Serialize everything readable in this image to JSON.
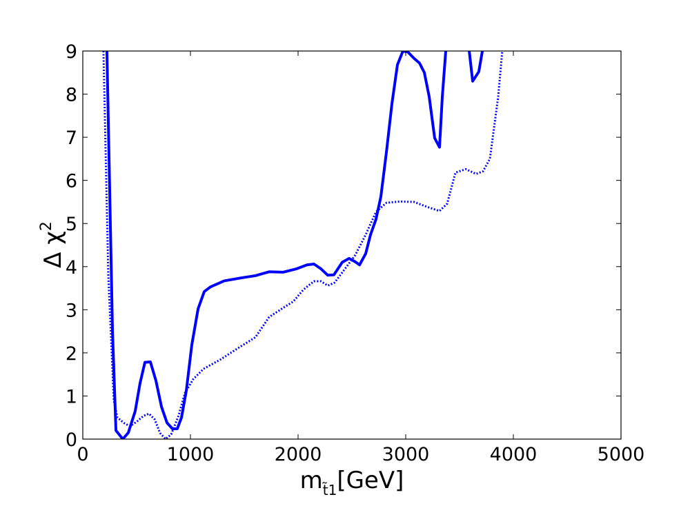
{
  "chart_data": {
    "type": "line",
    "xlabel": {
      "text": "m",
      "subscript": "t̃1",
      "suffix": "[GeV]"
    },
    "ylabel": {
      "text": "Δ χ",
      "superscript": "2"
    },
    "xlim": [
      0,
      5000
    ],
    "xticks": [
      0,
      1000,
      2000,
      3000,
      4000,
      5000
    ],
    "ylim": [
      0,
      9
    ],
    "yticks": [
      0,
      1,
      2,
      3,
      4,
      5,
      6,
      7,
      8,
      9
    ],
    "series": [
      {
        "style": "solid",
        "color": "#0000ff",
        "x": [
          224,
          276,
          308,
          372,
          423,
          487,
          532,
          577,
          628,
          679,
          731,
          782,
          833,
          878,
          917,
          962,
          1013,
          1071,
          1128,
          1186,
          1314,
          1474,
          1603,
          1731,
          1859,
          1987,
          2083,
          2147,
          2212,
          2276,
          2333,
          2410,
          2474,
          2532,
          2571,
          2628,
          2673,
          2724,
          2769,
          2821,
          2872,
          2923,
          2974,
          3019,
          3077,
          3128,
          3173,
          3218,
          3269,
          3314,
          3340,
          3372,
          3480,
          3590,
          3622,
          3679,
          3712
        ],
        "values": [
          9,
          2.5,
          0.2,
          0,
          0.15,
          0.65,
          1.3,
          1.78,
          1.79,
          1.36,
          0.75,
          0.38,
          0.24,
          0.24,
          0.5,
          1.13,
          2.19,
          3.02,
          3.42,
          3.53,
          3.67,
          3.74,
          3.79,
          3.88,
          3.87,
          3.95,
          4.04,
          4.06,
          3.95,
          3.8,
          3.81,
          4.1,
          4.19,
          4.11,
          4.04,
          4.3,
          4.74,
          5.1,
          5.62,
          6.66,
          7.78,
          8.68,
          9,
          8.98,
          8.83,
          8.72,
          8.5,
          7.94,
          6.98,
          6.77,
          7.94,
          9,
          null,
          9,
          8.3,
          8.52,
          9
        ]
      },
      {
        "style": "dotted",
        "color": "#0000ff",
        "x": [
          192,
          237,
          288,
          321,
          385,
          436,
          500,
          564,
          615,
          667,
          718,
          769,
          821,
          885,
          949,
          1026,
          1122,
          1282,
          1442,
          1603,
          1731,
          1859,
          1955,
          2051,
          2147,
          2212,
          2276,
          2340,
          2436,
          2532,
          2628,
          2724,
          2821,
          2949,
          3077,
          3205,
          3314,
          3385,
          3462,
          3558,
          3654,
          3718,
          3782,
          3859,
          3897
        ],
        "values": [
          9,
          3.8,
          0.9,
          0.5,
          0.37,
          0.3,
          0.4,
          0.54,
          0.59,
          0.46,
          0.14,
          0,
          0.11,
          0.51,
          1.07,
          1.39,
          1.63,
          1.85,
          2.11,
          2.36,
          2.83,
          3.04,
          3.19,
          3.47,
          3.66,
          3.66,
          3.56,
          3.63,
          3.95,
          4.27,
          4.74,
          5.27,
          5.48,
          5.51,
          5.5,
          5.38,
          5.29,
          5.46,
          6.18,
          6.26,
          6.15,
          6.21,
          6.5,
          7.94,
          9
        ]
      }
    ]
  }
}
